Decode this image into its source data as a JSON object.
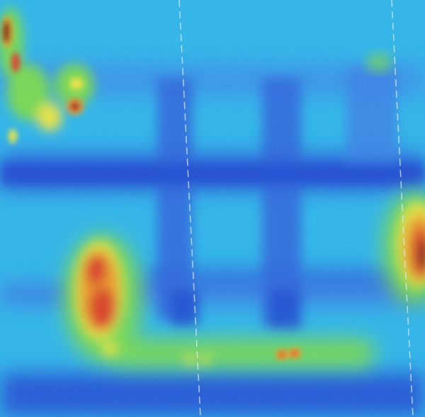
{
  "image": {
    "description_free": true,
    "palette": {
      "deep_blue": "#1428c8",
      "blue": "#2f6fe0",
      "cyan": "#2fb4e6",
      "light_cyan": "#5fd2e6",
      "green": "#7ad84a",
      "yellow": "#f0e43a",
      "orange": "#f39a1e",
      "red": "#e23a1a",
      "dark_red": "#7a0a10"
    },
    "colormap": "jet"
  }
}
